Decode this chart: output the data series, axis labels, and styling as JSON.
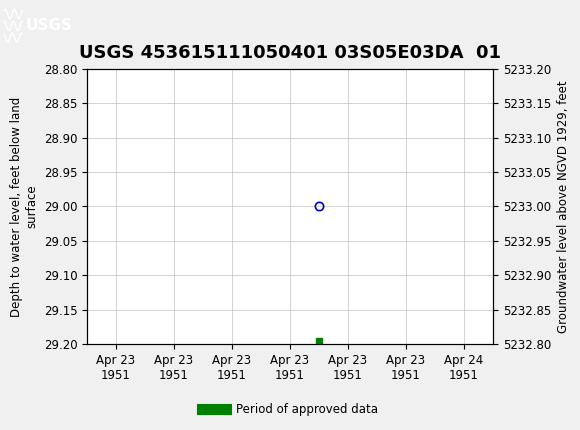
{
  "title": "USGS 453615111050401 03S05E03DA  01",
  "xlabel_dates": [
    "Apr 23\n1951",
    "Apr 23\n1951",
    "Apr 23\n1951",
    "Apr 23\n1951",
    "Apr 23\n1951",
    "Apr 23\n1951",
    "Apr 24\n1951"
  ],
  "ylabel_left": "Depth to water level, feet below land\nsurface",
  "ylabel_right": "Groundwater level above NGVD 1929, feet",
  "ylim_left": [
    29.2,
    28.8
  ],
  "ylim_right": [
    5232.8,
    5233.2
  ],
  "yticks_left": [
    28.8,
    28.85,
    28.9,
    28.95,
    29.0,
    29.05,
    29.1,
    29.15,
    29.2
  ],
  "yticks_right": [
    5232.8,
    5232.85,
    5232.9,
    5232.95,
    5233.0,
    5233.05,
    5233.1,
    5233.15,
    5233.2
  ],
  "ytick_labels_left": [
    "28.80",
    "28.85",
    "28.90",
    "28.95",
    "29.00",
    "29.05",
    "29.10",
    "29.15",
    "29.20"
  ],
  "ytick_labels_right": [
    "5232.80",
    "5232.85",
    "5232.90",
    "5232.95",
    "5233.00",
    "5233.05",
    "5233.10",
    "5233.15",
    "5233.20"
  ],
  "data_point_x": 3.5,
  "data_point_y": 29.0,
  "data_point_color": "#0000cc",
  "data_point_marker": "o",
  "marker_size": 6,
  "green_bar_x": 3.5,
  "green_bar_y": 29.195,
  "green_bar_color": "#008000",
  "header_color": "#1a6b3a",
  "background_color": "#f0f0f0",
  "plot_bg_color": "#ffffff",
  "grid_color": "#c0c0c0",
  "font_family": "DejaVu Sans",
  "title_fontsize": 13,
  "tick_fontsize": 8.5,
  "axis_label_fontsize": 8.5,
  "legend_label": "Period of approved data",
  "xtick_positions": [
    0,
    1,
    2,
    3,
    4,
    5,
    6
  ]
}
